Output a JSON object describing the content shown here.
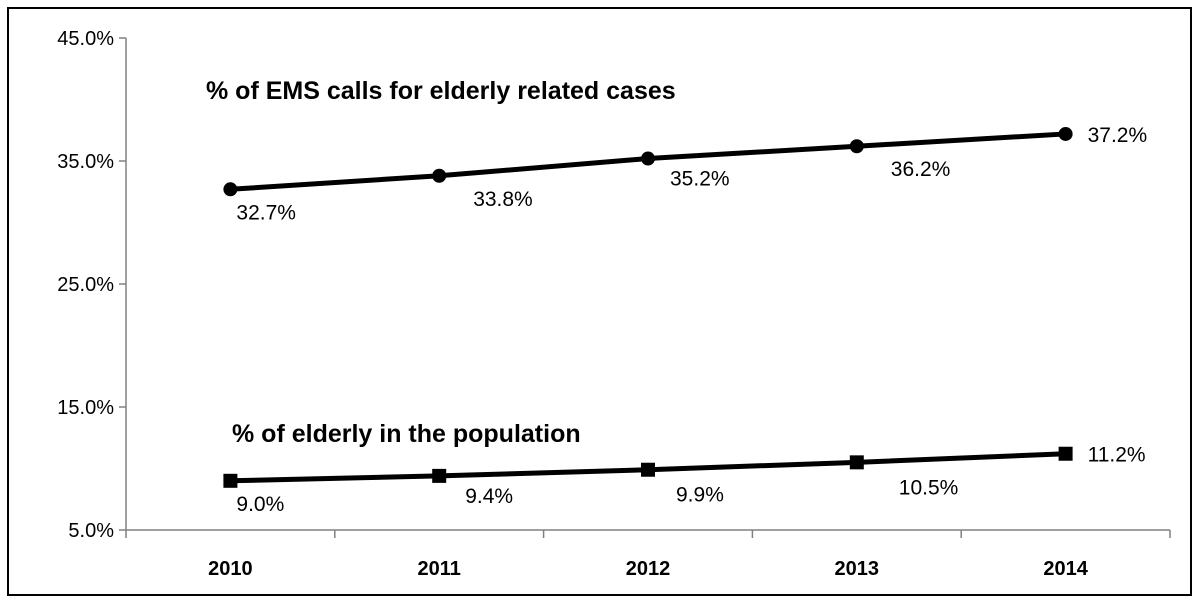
{
  "chart_data": {
    "type": "line",
    "x": [
      "2010",
      "2011",
      "2012",
      "2013",
      "2014"
    ],
    "ylim": [
      5.0,
      45.0
    ],
    "yticks": [
      "5.0%",
      "15.0%",
      "25.0%",
      "35.0%",
      "45.0%"
    ],
    "ytick_values": [
      5.0,
      15.0,
      25.0,
      35.0,
      45.0
    ],
    "grid": false,
    "legend": "none",
    "series": [
      {
        "name": "% of EMS calls for elderly related cases",
        "values": [
          32.7,
          33.8,
          35.2,
          36.2,
          37.2
        ],
        "labels": [
          "32.7%",
          "33.8%",
          "35.2%",
          "36.2%",
          "37.2%"
        ],
        "marker": "circle",
        "color": "#000000"
      },
      {
        "name": "% of elderly in the population",
        "values": [
          9.0,
          9.4,
          9.9,
          10.5,
          11.2
        ],
        "labels": [
          "9.0%",
          "9.4%",
          "9.9%",
          "10.5%",
          "11.2%"
        ],
        "marker": "square",
        "color": "#000000"
      }
    ]
  }
}
